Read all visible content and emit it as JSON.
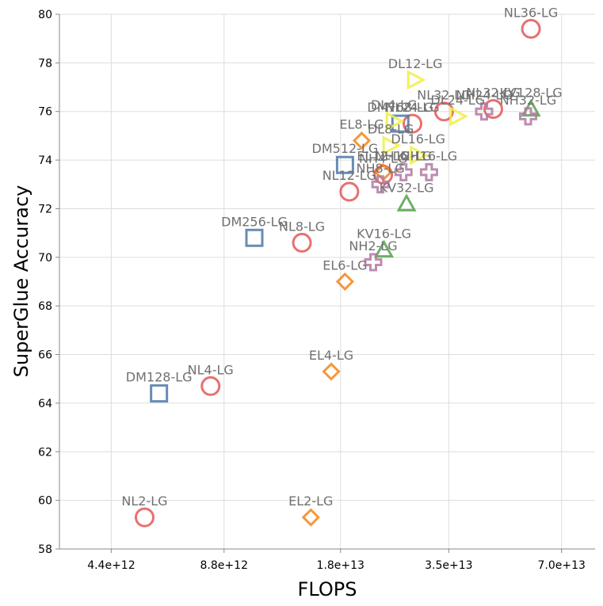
{
  "chart_data": {
    "type": "scatter",
    "xlabel": "FLOPS",
    "ylabel": "SuperGlue Accuracy",
    "xscale": "log",
    "xlim": [
      3200000000000.0,
      86000000000000.0
    ],
    "ylim": [
      58,
      80
    ],
    "xticks": [
      {
        "value": 4400000000000.0,
        "label": "4.4e+12"
      },
      {
        "value": 8800000000000.0,
        "label": "8.8e+12"
      },
      {
        "value": 18000000000000.0,
        "label": "1.8e+13"
      },
      {
        "value": 35000000000000.0,
        "label": "3.5e+13"
      },
      {
        "value": 70000000000000.0,
        "label": "7.0e+13"
      }
    ],
    "yticks": [
      {
        "value": 58,
        "label": "58"
      },
      {
        "value": 60,
        "label": "60"
      },
      {
        "value": 62,
        "label": "62"
      },
      {
        "value": 64,
        "label": "64"
      },
      {
        "value": 66,
        "label": "66"
      },
      {
        "value": 68,
        "label": "68"
      },
      {
        "value": 70,
        "label": "70"
      },
      {
        "value": 72,
        "label": "72"
      },
      {
        "value": 74,
        "label": "74"
      },
      {
        "value": 76,
        "label": "76"
      },
      {
        "value": 78,
        "label": "78"
      },
      {
        "value": 80,
        "label": "80"
      }
    ],
    "grid": true,
    "series": [
      {
        "name": "NL",
        "marker": "circle",
        "color": "#e45756",
        "points": [
          {
            "label": "NL2-LG",
            "x": 5400000000000.0,
            "y": 59.3
          },
          {
            "label": "NL4-LG",
            "x": 8100000000000.0,
            "y": 64.7
          },
          {
            "label": "NL8-LG",
            "x": 14200000000000.0,
            "y": 70.6
          },
          {
            "label": "NL12-LG",
            "x": 19000000000000.0,
            "y": 72.7
          },
          {
            "label": "NH4-LG",
            "x": 23400000000000.0,
            "y": 73.4
          },
          {
            "label": "NL24-LG",
            "x": 28000000000000.0,
            "y": 75.5
          },
          {
            "label": "NL32-LG",
            "x": 34000000000000.0,
            "y": 76.0
          },
          {
            "label": "NL32-LG",
            "x": 46000000000000.0,
            "y": 76.1
          },
          {
            "label": "NL36-LG",
            "x": 58000000000000.0,
            "y": 79.4
          }
        ]
      },
      {
        "name": "DM",
        "marker": "square",
        "color": "#4c78a8",
        "points": [
          {
            "label": "DM128-LG",
            "x": 5900000000000.0,
            "y": 64.4
          },
          {
            "label": "DM256-LG",
            "x": 10600000000000.0,
            "y": 70.8
          },
          {
            "label": "DM512-LG",
            "x": 18500000000000.0,
            "y": 73.8
          },
          {
            "label": "DM768-LG",
            "x": 26000000000000.0,
            "y": 75.5
          }
        ]
      },
      {
        "name": "EL",
        "marker": "diamond",
        "color": "#f58518",
        "points": [
          {
            "label": "EL2-LG",
            "x": 15000000000000.0,
            "y": 59.3
          },
          {
            "label": "EL4-LG",
            "x": 17000000000000.0,
            "y": 65.3
          },
          {
            "label": "EL6-LG",
            "x": 18500000000000.0,
            "y": 69.0
          },
          {
            "label": "EL8-LG",
            "x": 20500000000000.0,
            "y": 74.8
          },
          {
            "label": "EL12-LG",
            "x": 23400000000000.0,
            "y": 73.5
          }
        ]
      },
      {
        "name": "KV",
        "marker": "triangle-up",
        "color": "#54a24b",
        "points": [
          {
            "label": "KV16-LG",
            "x": 23500000000000.0,
            "y": 70.3
          },
          {
            "label": "KV32-LG",
            "x": 27000000000000.0,
            "y": 72.2
          },
          {
            "label": "KV128-LG",
            "x": 58000000000000.0,
            "y": 76.1
          }
        ]
      },
      {
        "name": "DL",
        "marker": "triangle-right",
        "color": "#eeee44",
        "points": [
          {
            "label": "DL12-LG",
            "x": 28500000000000.0,
            "y": 77.3
          },
          {
            "label": "DL4-LG",
            "x": 25000000000000.0,
            "y": 75.6
          },
          {
            "label": "DL8-LG",
            "x": 24500000000000.0,
            "y": 74.6
          },
          {
            "label": "DL16-LG",
            "x": 29000000000000.0,
            "y": 74.2
          },
          {
            "label": "DL24-LG",
            "x": 37000000000000.0,
            "y": 75.8
          }
        ]
      },
      {
        "name": "NH",
        "marker": "cross",
        "color": "#b279a2",
        "points": [
          {
            "label": "NH2-LG",
            "x": 22000000000000.0,
            "y": 69.8
          },
          {
            "label": "NH8-LG",
            "x": 23000000000000.0,
            "y": 73.0
          },
          {
            "label": "NH12-LG",
            "x": 26500000000000.0,
            "y": 73.5
          },
          {
            "label": "NH16-LG",
            "x": 31000000000000.0,
            "y": 73.5
          },
          {
            "label": "NH24-LG",
            "x": 43500000000000.0,
            "y": 76.0
          },
          {
            "label": "NH32-LG",
            "x": 57000000000000.0,
            "y": 75.8
          }
        ]
      }
    ]
  }
}
